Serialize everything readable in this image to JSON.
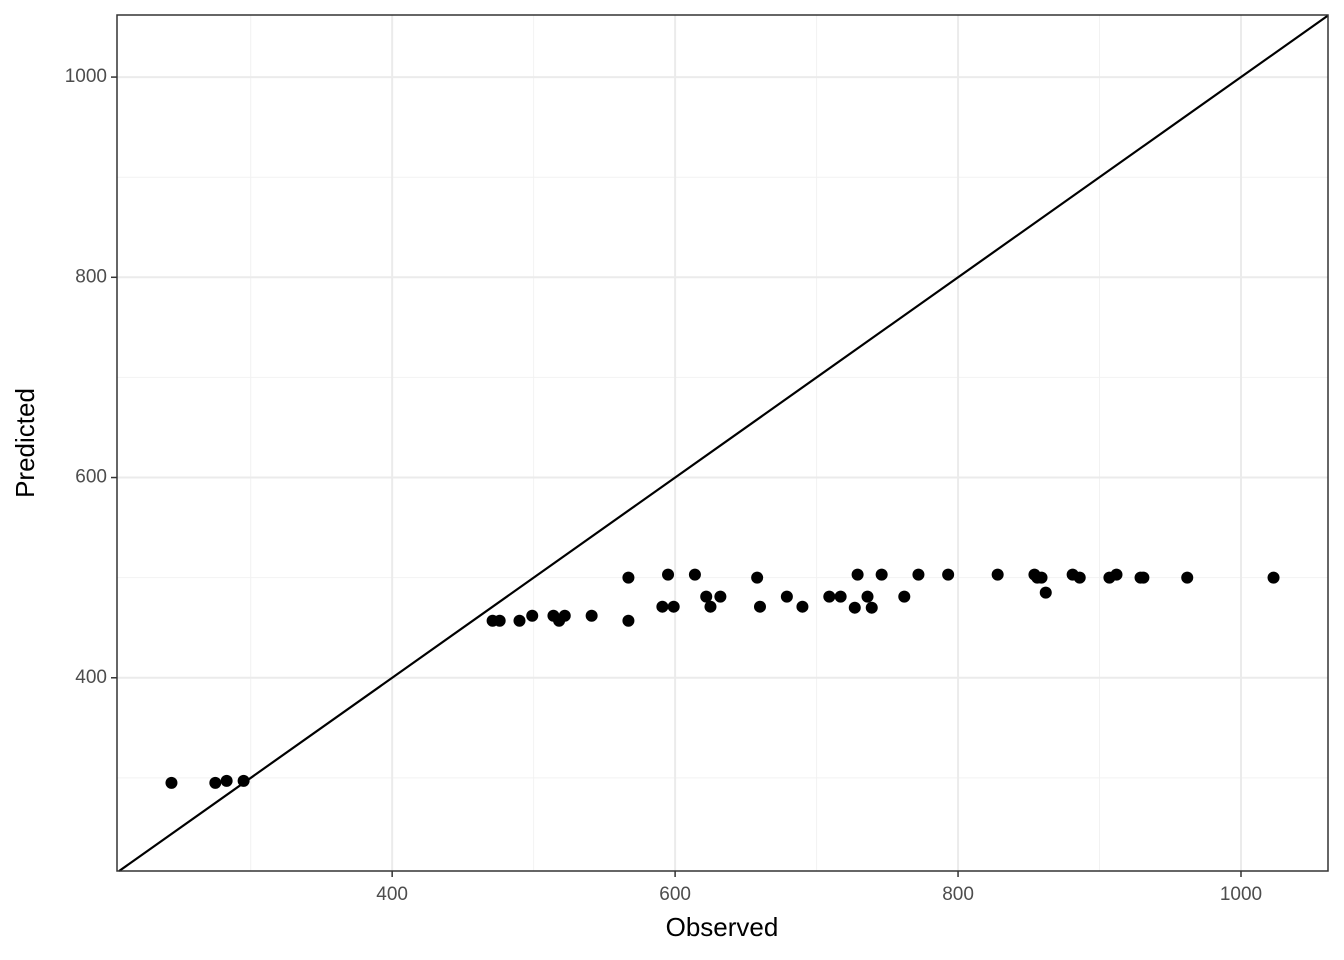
{
  "chart_data": {
    "type": "scatter",
    "x_label": "Observed",
    "y_label": "Predicted",
    "xlim": [
      205.5,
      1061.5
    ],
    "ylim": [
      207,
      1062
    ],
    "xticks": [
      400,
      600,
      800,
      1000
    ],
    "yticks": [
      400,
      600,
      800,
      1000
    ],
    "xminor": [
      300,
      500,
      700,
      900
    ],
    "yminor": [
      300,
      500,
      700,
      900
    ],
    "grid": true,
    "identity_line": true,
    "color": "#000000",
    "series": [
      {
        "x": [
          244,
          275,
          283,
          295,
          471,
          476,
          490,
          499,
          514,
          518,
          522,
          541,
          567,
          567,
          591,
          595,
          599,
          614,
          622,
          625,
          632,
          658,
          660,
          679,
          690,
          709,
          717,
          727,
          729,
          736,
          739,
          746,
          762,
          772,
          793,
          828,
          854,
          856,
          859,
          862,
          881,
          886,
          907,
          912,
          929,
          931,
          962,
          1023
        ],
        "values": [
          295,
          295,
          297,
          297,
          457,
          457,
          457,
          462,
          462,
          457,
          462,
          462,
          500,
          457,
          471,
          503,
          471,
          503,
          481,
          471,
          481,
          500,
          471,
          481,
          471,
          481,
          481,
          470,
          503,
          481,
          470,
          503,
          481,
          503,
          503,
          503,
          503,
          500,
          500,
          485,
          503,
          500,
          500,
          503,
          500,
          500,
          500,
          500
        ]
      }
    ]
  }
}
